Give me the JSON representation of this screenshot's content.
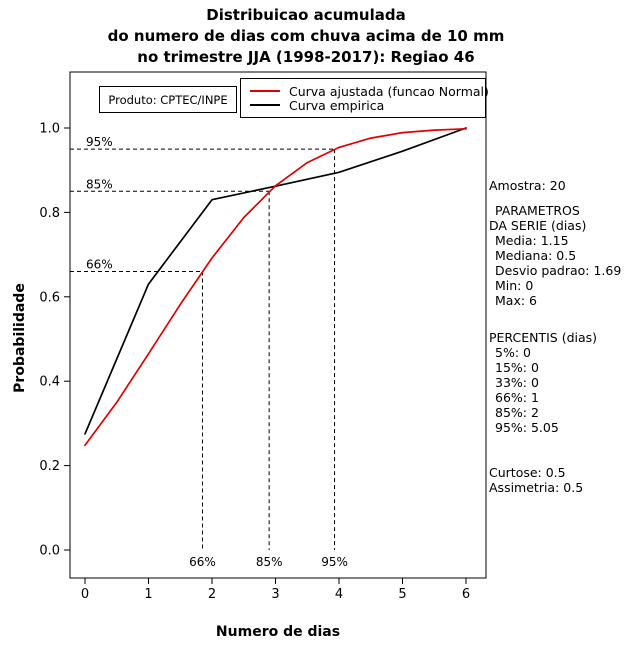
{
  "title": {
    "line1": "Distribuicao acumulada",
    "line2": "do numero de dias com chuva acima de 10 mm",
    "line3": "no trimestre JJA (1998-2017): Regiao 46"
  },
  "axes": {
    "x_label": "Numero de dias",
    "y_label": "Probabilidade"
  },
  "legend": {
    "fitted_label": "Curva ajustada (funcao Normal)",
    "empirical_label": "Curva empirica"
  },
  "product_box": {
    "label": "Produto: CPTEC/INPE"
  },
  "stats_panel": {
    "sample": "Amostra: 20",
    "params_header_line1": "PARAMETROS",
    "params_header_line2": "DA SERIE (dias)",
    "params_items": [
      "Media: 1.15",
      "Mediana: 0.5",
      "Desvio padrao: 1.69",
      "Min: 0",
      "Max: 6"
    ],
    "percentis_header": "PERCENTIS (dias)",
    "percentis_items": [
      "5%: 0",
      "15%: 0",
      "33%: 0",
      "66%: 1",
      "85%: 2",
      "95%: 5.05"
    ],
    "moments_items": [
      "Curtose: 0.5",
      "Assimetria: 0.5"
    ]
  },
  "colors": {
    "fitted": "#e10000",
    "empirical": "#000000"
  },
  "chart_data": {
    "type": "line",
    "title": "Distribuicao acumulada do numero de dias com chuva acima de 10 mm no trimestre JJA (1998-2017): Regiao 46",
    "xlabel": "Numero de dias",
    "ylabel": "Probabilidade",
    "xlim": [
      0,
      6
    ],
    "ylim": [
      0,
      1
    ],
    "x_ticks": [
      0,
      1,
      2,
      3,
      4,
      5,
      6
    ],
    "y_ticks": [
      0,
      0.2,
      0.4,
      0.6,
      0.8,
      1
    ],
    "grid": false,
    "legend_position": "top-right-inside",
    "series": [
      {
        "name": "Curva empirica",
        "color": "#000000",
        "x": [
          0,
          1,
          2,
          3,
          4,
          5,
          6
        ],
        "y": [
          0.275,
          0.63,
          0.83,
          0.862,
          0.895,
          0.945,
          1.0
        ]
      },
      {
        "name": "Curva ajustada (funcao Normal)",
        "color": "#e10000",
        "x": [
          0,
          0.5,
          1,
          1.5,
          2,
          2.5,
          3,
          3.5,
          4,
          4.5,
          5,
          5.5,
          6
        ],
        "y": [
          0.248,
          0.35,
          0.465,
          0.582,
          0.692,
          0.788,
          0.863,
          0.918,
          0.954,
          0.976,
          0.989,
          0.995,
          0.998
        ]
      }
    ],
    "guides": [
      {
        "label": "66%",
        "p": 0.66,
        "x": 1.85
      },
      {
        "label": "85%",
        "p": 0.85,
        "x": 2.9
      },
      {
        "label": "95%",
        "p": 0.95,
        "x": 3.93
      }
    ]
  }
}
